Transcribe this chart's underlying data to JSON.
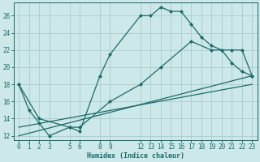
{
  "xlabel": "Humidex (Indice chaleur)",
  "background_color": "#cce8e8",
  "grid_color": "#aacccc",
  "line_color": "#1a6b6b",
  "xlim": [
    -0.5,
    23.5
  ],
  "ylim": [
    11.5,
    27.5
  ],
  "xticks": [
    0,
    1,
    2,
    3,
    5,
    6,
    8,
    9,
    12,
    13,
    14,
    15,
    16,
    17,
    18,
    19,
    20,
    21,
    22,
    23
  ],
  "yticks": [
    12,
    14,
    16,
    18,
    20,
    22,
    24,
    26
  ],
  "lines": [
    {
      "x": [
        0,
        1,
        2,
        3,
        5,
        6,
        8,
        9,
        12,
        13,
        14,
        15,
        16,
        17,
        18,
        19,
        20,
        21,
        22,
        23
      ],
      "y": [
        18,
        15,
        13.5,
        12,
        13,
        12.5,
        19,
        21.5,
        26,
        26,
        27,
        26.5,
        26.5,
        25,
        23.5,
        22.5,
        22,
        20.5,
        19.5,
        19
      ],
      "marker": true
    },
    {
      "x": [
        0,
        2,
        5,
        6,
        9,
        12,
        14,
        17,
        19,
        20,
        21,
        22,
        23
      ],
      "y": [
        18,
        14,
        13,
        13,
        16,
        18,
        20,
        23,
        22,
        22,
        22,
        22,
        19
      ],
      "marker": true
    },
    {
      "x": [
        0,
        23
      ],
      "y": [
        13,
        18
      ],
      "marker": false
    },
    {
      "x": [
        0,
        23
      ],
      "y": [
        12,
        19
      ],
      "marker": false
    }
  ]
}
